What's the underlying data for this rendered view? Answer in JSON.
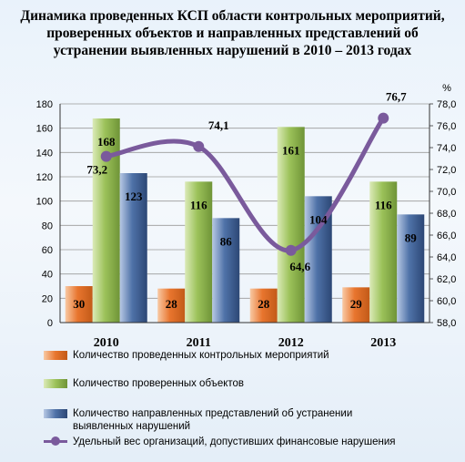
{
  "chart_data": {
    "type": "bar",
    "title": "Динамика проведенных КСП области контрольных мероприятий,  проверенных объектов и направленных представлений об устранении выявленных нарушений в 2010 – 2013 годах",
    "categories": [
      "2010",
      "2011",
      "2012",
      "2013"
    ],
    "ylim": [
      0,
      180
    ],
    "yticks": [
      "0",
      "20",
      "40",
      "60",
      "80",
      "100",
      "120",
      "140",
      "160",
      "180"
    ],
    "y2label": "%",
    "y2lim": [
      58,
      78
    ],
    "y2ticks": [
      "58,0",
      "60,0",
      "62,0",
      "64,0",
      "66,0",
      "68,0",
      "70,0",
      "72,0",
      "74,0",
      "76,0",
      "78,0"
    ],
    "series": [
      {
        "name": "Количество проведенных контрольных мероприятий",
        "values": [
          30,
          28,
          28,
          29
        ],
        "labels": [
          "30",
          "28",
          "28",
          "29"
        ],
        "color": "#e8752e"
      },
      {
        "name": "Количество проверенных объектов",
        "values": [
          168,
          116,
          161,
          116
        ],
        "labels": [
          "168",
          "116",
          "161",
          "116"
        ],
        "color": "#8cb34a"
      },
      {
        "name": "Количество направленных представлений об устранении выявленных нарушений",
        "values": [
          123,
          86,
          104,
          89
        ],
        "labels": [
          "123",
          "86",
          "104",
          "89"
        ],
        "color": "#3d5f93"
      },
      {
        "name": "Удельный вес организаций, допустивших финансовые нарушения",
        "type": "line",
        "axis": "right",
        "values": [
          73.2,
          74.1,
          64.6,
          76.7
        ],
        "labels": [
          "73,2",
          "74,1",
          "64,6",
          "76,7"
        ],
        "color": "#7a5a9c"
      }
    ],
    "legend_position": "bottom",
    "grid": true
  }
}
